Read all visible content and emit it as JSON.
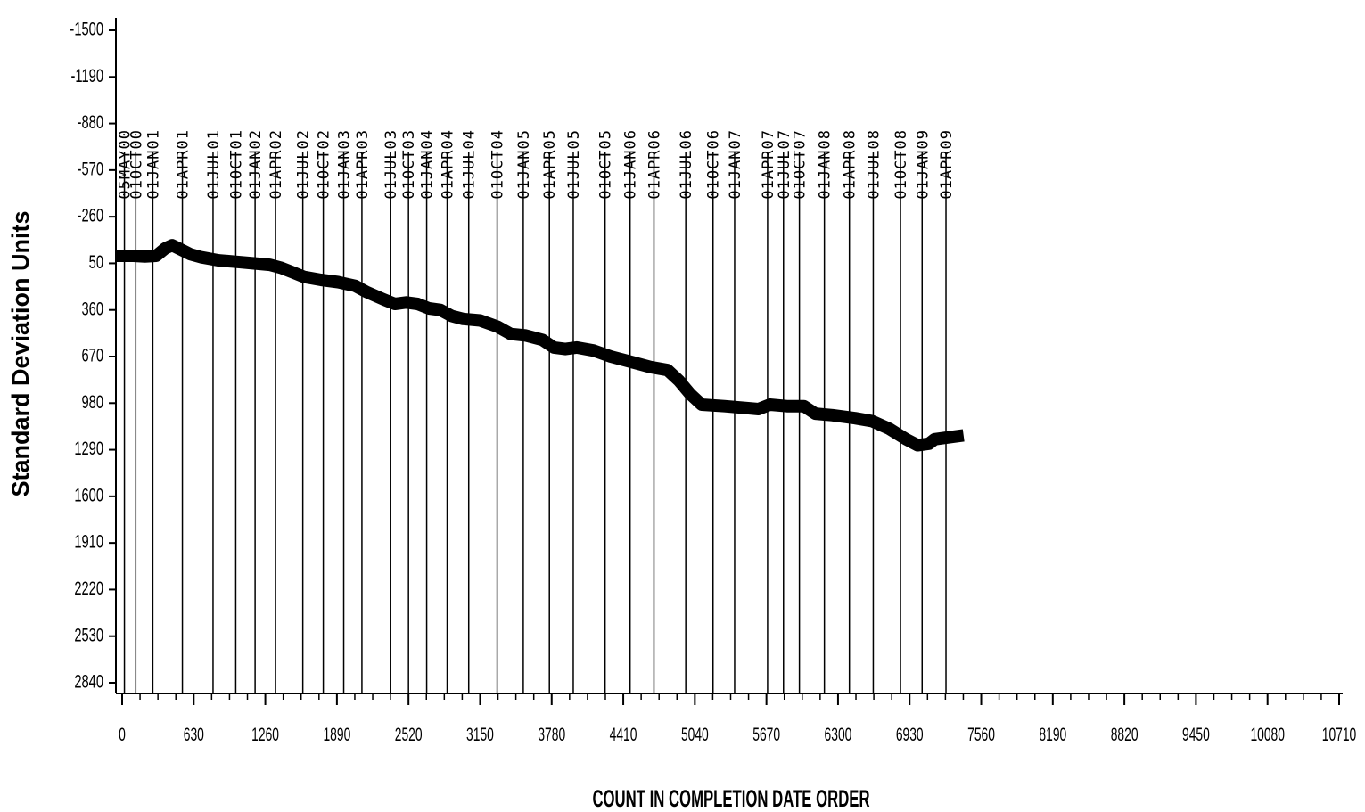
{
  "chart_data": {
    "type": "line",
    "title": "",
    "ylabel": "Standard Deviation Units",
    "xlabel": "COUNT IN COMPLETION DATE ORDER",
    "y_ticks": [
      -1500,
      -1190,
      -880,
      -570,
      -260,
      50,
      360,
      670,
      980,
      1290,
      1600,
      1910,
      2220,
      2530,
      2840
    ],
    "y_tick_labels": [
      "-1500",
      "-1190",
      "-880",
      "-570",
      "-260",
      "50",
      "360",
      "670",
      "980",
      "1290",
      "1600",
      "1910",
      "2220",
      "2530",
      "2840"
    ],
    "y_axis_inverted": true,
    "ylim": [
      -1500,
      2840
    ],
    "x_ticks": [
      0,
      630,
      1260,
      1890,
      2520,
      3150,
      3780,
      4410,
      5040,
      5670,
      6300,
      6930,
      7560,
      8190,
      8820,
      9450,
      10080,
      10710
    ],
    "x_tick_labels": [
      "0",
      "630",
      "1260",
      "1890",
      "2520",
      "3150",
      "3780",
      "4410",
      "5040",
      "5670",
      "6300",
      "6930",
      "7560",
      "8190",
      "8820",
      "9450",
      "10080",
      "10710"
    ],
    "xlim": [
      0,
      10710
    ],
    "grid": false,
    "date_markers": [
      {
        "label": "05MAY00",
        "x": 20
      },
      {
        "label": "01OCT00",
        "x": 120
      },
      {
        "label": "01JAN01",
        "x": 270
      },
      {
        "label": "01APR01",
        "x": 530
      },
      {
        "label": "01JUL01",
        "x": 800
      },
      {
        "label": "01OCT01",
        "x": 1000
      },
      {
        "label": "01JAN02",
        "x": 1170
      },
      {
        "label": "01APR02",
        "x": 1350
      },
      {
        "label": "01JUL02",
        "x": 1590
      },
      {
        "label": "01OCT02",
        "x": 1770
      },
      {
        "label": "01JAN03",
        "x": 1950
      },
      {
        "label": "01APR03",
        "x": 2110
      },
      {
        "label": "01JUL03",
        "x": 2360
      },
      {
        "label": "01OCT03",
        "x": 2520
      },
      {
        "label": "01JAN04",
        "x": 2680
      },
      {
        "label": "01APR04",
        "x": 2860
      },
      {
        "label": "01JUL04",
        "x": 3050
      },
      {
        "label": "01OCT04",
        "x": 3300
      },
      {
        "label": "01JAN05",
        "x": 3530
      },
      {
        "label": "01APR05",
        "x": 3760
      },
      {
        "label": "01JUL05",
        "x": 3970
      },
      {
        "label": "01OCT05",
        "x": 4250
      },
      {
        "label": "01JAN06",
        "x": 4470
      },
      {
        "label": "01APR06",
        "x": 4680
      },
      {
        "label": "01JUL06",
        "x": 4960
      },
      {
        "label": "01OCT06",
        "x": 5200
      },
      {
        "label": "01JAN07",
        "x": 5390
      },
      {
        "label": "01APR07",
        "x": 5680
      },
      {
        "label": "01JUL07",
        "x": 5820
      },
      {
        "label": "01OCT07",
        "x": 5960
      },
      {
        "label": "01JAN08",
        "x": 6180
      },
      {
        "label": "01APR08",
        "x": 6400
      },
      {
        "label": "01JUL08",
        "x": 6610
      },
      {
        "label": "01OCT08",
        "x": 6850
      },
      {
        "label": "01JAN09",
        "x": 7040
      },
      {
        "label": "01APR09",
        "x": 7250
      }
    ],
    "series": [
      {
        "values": [
          [
            0,
            0
          ],
          [
            100,
            0
          ],
          [
            200,
            5
          ],
          [
            300,
            0
          ],
          [
            380,
            -50
          ],
          [
            440,
            -70
          ],
          [
            520,
            -40
          ],
          [
            600,
            -10
          ],
          [
            700,
            10
          ],
          [
            850,
            30
          ],
          [
            1000,
            40
          ],
          [
            1150,
            50
          ],
          [
            1300,
            60
          ],
          [
            1400,
            80
          ],
          [
            1500,
            110
          ],
          [
            1600,
            140
          ],
          [
            1750,
            160
          ],
          [
            1900,
            175
          ],
          [
            2050,
            200
          ],
          [
            2150,
            240
          ],
          [
            2300,
            290
          ],
          [
            2400,
            320
          ],
          [
            2500,
            310
          ],
          [
            2600,
            320
          ],
          [
            2700,
            350
          ],
          [
            2800,
            360
          ],
          [
            2900,
            400
          ],
          [
            3000,
            420
          ],
          [
            3150,
            430
          ],
          [
            3300,
            470
          ],
          [
            3420,
            520
          ],
          [
            3550,
            530
          ],
          [
            3700,
            560
          ],
          [
            3800,
            610
          ],
          [
            3900,
            620
          ],
          [
            4000,
            610
          ],
          [
            4150,
            630
          ],
          [
            4300,
            670
          ],
          [
            4500,
            710
          ],
          [
            4650,
            740
          ],
          [
            4800,
            760
          ],
          [
            4900,
            830
          ],
          [
            5000,
            920
          ],
          [
            5100,
            990
          ],
          [
            5300,
            1000
          ],
          [
            5450,
            1010
          ],
          [
            5600,
            1020
          ],
          [
            5700,
            990
          ],
          [
            5850,
            1000
          ],
          [
            6000,
            1000
          ],
          [
            6100,
            1050
          ],
          [
            6250,
            1060
          ],
          [
            6450,
            1080
          ],
          [
            6600,
            1100
          ],
          [
            6750,
            1150
          ],
          [
            6900,
            1220
          ],
          [
            7000,
            1260
          ],
          [
            7100,
            1250
          ],
          [
            7150,
            1220
          ],
          [
            7250,
            1210
          ],
          [
            7350,
            1200
          ]
        ]
      }
    ]
  }
}
